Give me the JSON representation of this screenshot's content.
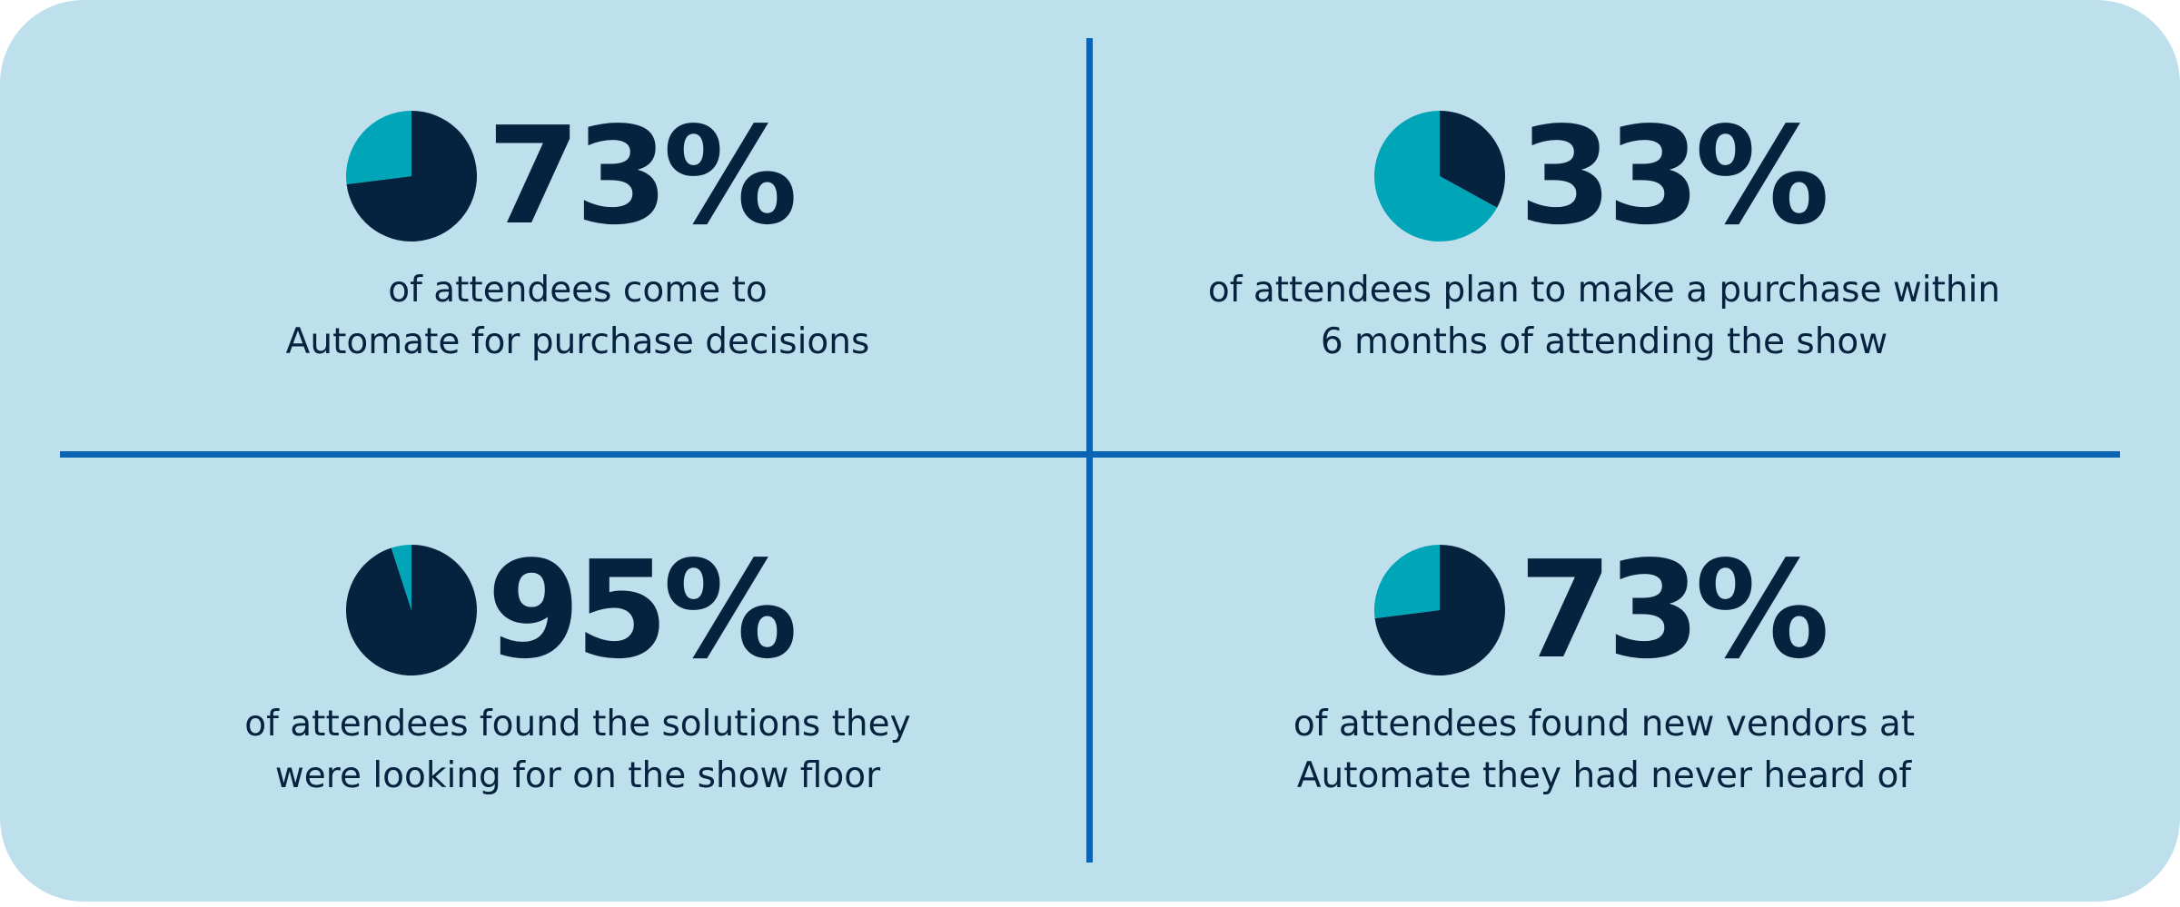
{
  "colors": {
    "background": "#bee0ec",
    "divider": "#0b64b3",
    "dark": "#05233f",
    "accent": "#00a5b8"
  },
  "chart_data": [
    {
      "type": "pie",
      "values": [
        73,
        27
      ],
      "categories": [
        "dark",
        "accent"
      ],
      "value_label": "73%",
      "caption": [
        "of attendees come to",
        "Automate for purchase decisions"
      ]
    },
    {
      "type": "pie",
      "values": [
        33,
        67
      ],
      "categories": [
        "dark",
        "accent"
      ],
      "value_label": "33%",
      "caption": [
        "of attendees plan to make a purchase within",
        "6 months of attending the show"
      ]
    },
    {
      "type": "pie",
      "values": [
        95,
        5
      ],
      "categories": [
        "dark",
        "accent"
      ],
      "value_label": "95%",
      "caption": [
        "of attendees found the solutions they",
        "were looking for on the show floor"
      ]
    },
    {
      "type": "pie",
      "values": [
        73,
        27
      ],
      "categories": [
        "dark",
        "accent"
      ],
      "value_label": "73%",
      "caption": [
        "of attendees found new vendors at",
        "Automate they had never heard of"
      ]
    }
  ]
}
